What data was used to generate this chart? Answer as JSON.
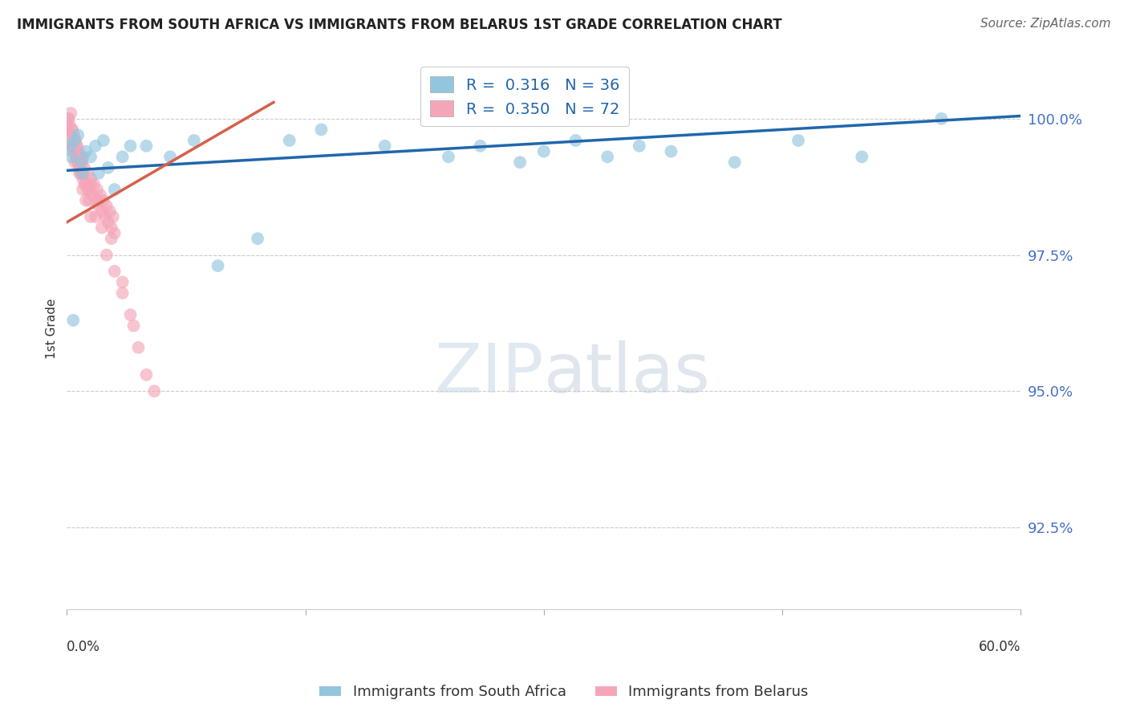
{
  "title": "IMMIGRANTS FROM SOUTH AFRICA VS IMMIGRANTS FROM BELARUS 1ST GRADE CORRELATION CHART",
  "source": "Source: ZipAtlas.com",
  "ylabel": "1st Grade",
  "yticks": [
    92.5,
    95.0,
    97.5,
    100.0
  ],
  "ytick_labels": [
    "92.5%",
    "95.0%",
    "97.5%",
    "100.0%"
  ],
  "xlim": [
    0.0,
    60.0
  ],
  "ylim": [
    91.0,
    101.3
  ],
  "blue_color": "#92c5de",
  "pink_color": "#f4a6b8",
  "blue_line_color": "#2166ac",
  "pink_line_color": "#d6604d",
  "blue_scatter_x": [
    0.2,
    0.3,
    0.5,
    0.7,
    0.9,
    1.0,
    1.2,
    1.5,
    1.8,
    2.0,
    2.3,
    2.6,
    3.0,
    3.5,
    4.0,
    5.0,
    6.5,
    8.0,
    9.5,
    12.0,
    14.0,
    16.0,
    20.0,
    24.0,
    26.0,
    28.5,
    30.0,
    32.0,
    34.0,
    36.0,
    38.0,
    42.0,
    46.0,
    50.0,
    55.0,
    0.4
  ],
  "blue_scatter_y": [
    99.5,
    99.3,
    99.6,
    99.7,
    99.2,
    99.0,
    99.4,
    99.3,
    99.5,
    99.0,
    99.6,
    99.1,
    98.7,
    99.3,
    99.5,
    99.5,
    99.3,
    99.6,
    97.3,
    97.8,
    99.6,
    99.8,
    99.5,
    99.3,
    99.5,
    99.2,
    99.4,
    99.6,
    99.3,
    99.5,
    99.4,
    99.2,
    99.6,
    99.3,
    100.0,
    96.3
  ],
  "pink_scatter_x": [
    0.05,
    0.1,
    0.15,
    0.2,
    0.25,
    0.3,
    0.35,
    0.4,
    0.45,
    0.5,
    0.55,
    0.6,
    0.65,
    0.7,
    0.75,
    0.8,
    0.85,
    0.9,
    0.95,
    1.0,
    1.1,
    1.2,
    1.3,
    1.4,
    1.5,
    1.6,
    1.7,
    1.8,
    1.9,
    2.0,
    2.1,
    2.2,
    2.3,
    2.4,
    2.5,
    2.6,
    2.7,
    2.8,
    2.9,
    3.0,
    0.3,
    0.5,
    0.8,
    1.0,
    1.2,
    1.5,
    0.2,
    0.4,
    0.6,
    0.9,
    1.1,
    1.4,
    0.1,
    0.3,
    0.6,
    1.0,
    1.5,
    2.0,
    2.5,
    3.0,
    3.5,
    4.0,
    4.5,
    5.0,
    3.5,
    4.2,
    5.5,
    2.2,
    1.8,
    0.7,
    2.8,
    1.3
  ],
  "pink_scatter_y": [
    99.8,
    100.0,
    99.9,
    99.7,
    100.1,
    99.6,
    99.8,
    99.5,
    99.7,
    99.4,
    99.6,
    99.3,
    99.5,
    99.2,
    99.4,
    99.1,
    99.3,
    99.0,
    99.2,
    98.9,
    99.1,
    98.8,
    99.0,
    98.7,
    98.9,
    98.6,
    98.8,
    98.5,
    98.7,
    98.4,
    98.6,
    98.3,
    98.5,
    98.2,
    98.4,
    98.1,
    98.3,
    98.0,
    98.2,
    97.9,
    99.4,
    99.2,
    99.0,
    98.7,
    98.5,
    98.2,
    99.7,
    99.5,
    99.3,
    99.0,
    98.8,
    98.5,
    100.0,
    99.8,
    99.5,
    99.3,
    98.8,
    98.5,
    97.5,
    97.2,
    96.8,
    96.4,
    95.8,
    95.3,
    97.0,
    96.2,
    95.0,
    98.0,
    98.2,
    99.2,
    97.8,
    98.7
  ],
  "blue_trend_x": [
    0.0,
    60.0
  ],
  "blue_trend_y": [
    99.05,
    100.05
  ],
  "pink_trend_x": [
    0.0,
    13.0
  ],
  "pink_trend_y": [
    98.1,
    100.3
  ]
}
